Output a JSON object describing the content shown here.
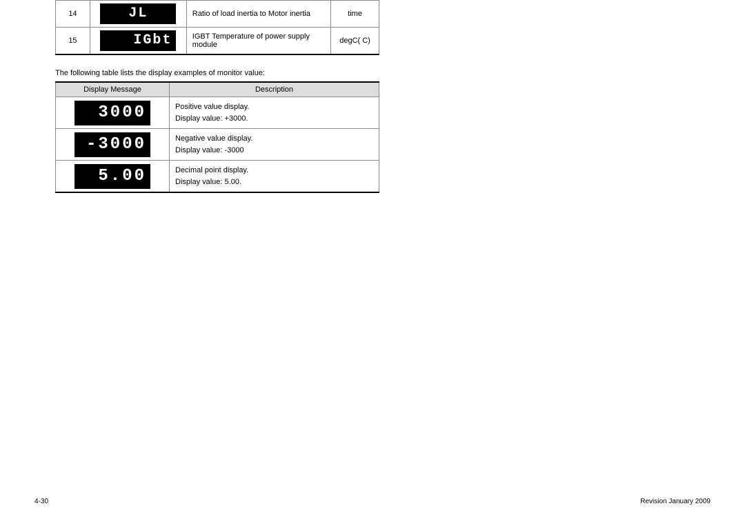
{
  "top_table": {
    "rows": [
      {
        "num": "14",
        "display": "JL",
        "display_class": "center",
        "desc": "Ratio of load inertia to Motor inertia",
        "unit": "time"
      },
      {
        "num": "15",
        "display": "IGbt",
        "display_class": "",
        "desc": "IGBT Temperature of power supply module",
        "unit": "degC( C)"
      }
    ]
  },
  "intro_text": "The following table lists the display examples of monitor value:",
  "bottom_table": {
    "headers": {
      "msg": "Display Message",
      "desc": "Description"
    },
    "rows": [
      {
        "display": "3000",
        "desc_line1": "Positive value display.",
        "desc_line2": "Display value: +3000."
      },
      {
        "display": "-3000",
        "desc_line1": "Negative value display.",
        "desc_line2": "Display value: -3000"
      },
      {
        "display": "5.00",
        "desc_line1": "Decimal point display.",
        "desc_line2": "Display value: 5.00."
      }
    ]
  },
  "footer": {
    "left": "4-30",
    "right": "Revision January 2009"
  }
}
